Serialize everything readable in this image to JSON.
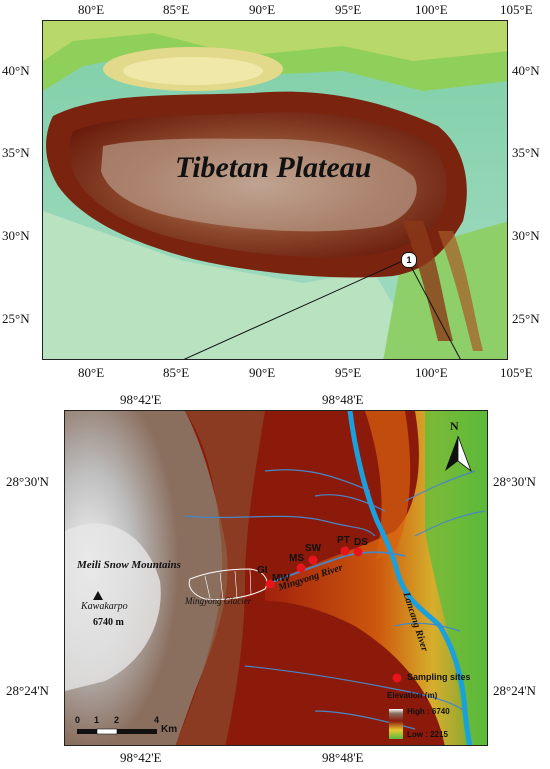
{
  "top_map": {
    "title": "Tibetan Plateau",
    "lon_labels": [
      "80°E",
      "85°E",
      "90°E",
      "95°E",
      "100°E",
      "105°E"
    ],
    "lat_labels": [
      "40°N",
      "35°N",
      "30°N",
      "25°N"
    ],
    "study_marker": "1"
  },
  "bottom_map": {
    "lon_labels": [
      "98°42'E",
      "98°48'E"
    ],
    "lat_labels": [
      "28°30'N",
      "28°24'N"
    ],
    "north_label": "N",
    "place_labels": {
      "meili": "Meili Snow Mountains",
      "kawakarpo": "Kawakarpo",
      "kawakarpo_elev": "6740 m",
      "glacier": "Mingyong Glacier",
      "river": "Mingyong River",
      "lancang": "Lancang River"
    },
    "sites": [
      "GI",
      "MW",
      "MS",
      "SW",
      "PT",
      "DS"
    ],
    "legend": {
      "sampling": "Sampling sites",
      "elevation_title": "Elevation (m)",
      "high": "High : 6740",
      "low": "Low : 2215"
    },
    "scale": {
      "ticks": [
        "0",
        "1",
        "2",
        "4"
      ],
      "unit": "Km"
    }
  },
  "colors": {
    "site": "#e8141c",
    "river": "#1aa0dc",
    "high": "#ffffff",
    "mid": "#8b1a0a",
    "low": "#5abf3c"
  }
}
